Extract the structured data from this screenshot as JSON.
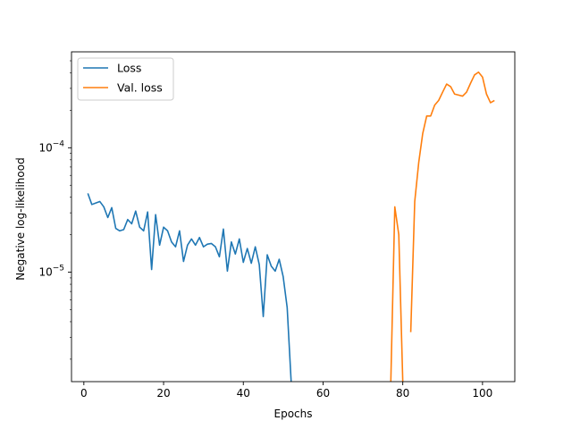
{
  "chart_data": {
    "type": "line",
    "title": "",
    "xlabel": "Epochs",
    "ylabel": "Negative log-likelihood",
    "xlim": [
      -3.1,
      108.1
    ],
    "ylim": [
      1.32e-06,
      0.00059
    ],
    "yscale": "log",
    "x_ticks": [
      0,
      20,
      40,
      60,
      80,
      100
    ],
    "x_tick_labels": [
      "0",
      "20",
      "40",
      "60",
      "80",
      "100"
    ],
    "y_ticks": [
      1e-05,
      0.0001
    ],
    "y_tick_labels": [
      {
        "base": "10",
        "exp": "−5"
      },
      {
        "base": "10",
        "exp": "−4"
      }
    ],
    "grid": false,
    "legend": "top-left",
    "series": [
      {
        "name": "Loss",
        "color": "#1f77b4",
        "x": [
          1,
          2,
          3,
          4,
          5,
          6,
          7,
          8,
          9,
          10,
          11,
          12,
          13,
          14,
          15,
          16,
          17,
          18,
          19,
          20,
          21,
          22,
          23,
          24,
          25,
          26,
          27,
          28,
          29,
          30,
          31,
          32,
          33,
          34,
          35,
          36,
          37,
          38,
          39,
          40,
          41,
          42,
          43,
          44,
          45,
          46,
          47,
          48,
          49,
          50,
          51,
          52
        ],
        "y": [
          4.3e-05,
          3.5e-05,
          3.6e-05,
          3.7e-05,
          3.35e-05,
          2.75e-05,
          3.3e-05,
          2.25e-05,
          2.15e-05,
          2.2e-05,
          2.65e-05,
          2.45e-05,
          3.1e-05,
          2.3e-05,
          2.15e-05,
          3.05e-05,
          1.05e-05,
          2.9e-05,
          1.65e-05,
          2.3e-05,
          2.15e-05,
          1.75e-05,
          1.6e-05,
          2.15e-05,
          1.22e-05,
          1.65e-05,
          1.85e-05,
          1.65e-05,
          1.9e-05,
          1.6e-05,
          1.68e-05,
          1.7e-05,
          1.6e-05,
          1.33e-05,
          2.22e-05,
          1.02e-05,
          1.75e-05,
          1.4e-05,
          1.85e-05,
          1.2e-05,
          1.55e-05,
          1.18e-05,
          1.6e-05,
          1.15e-05,
          4.4e-06,
          1.38e-05,
          1.12e-05,
          1.02e-05,
          1.27e-05,
          9.2e-06,
          5.2e-06,
          1.32e-06
        ]
      },
      {
        "name": "Val. loss",
        "color": "#ff7f0e",
        "segments": [
          {
            "x": [
              77,
              78,
              79,
              80
            ],
            "y": [
              1.32e-06,
              3.35e-05,
              2e-05,
              1.32e-06
            ]
          },
          {
            "x": [
              82,
              83,
              84,
              85,
              86,
              87,
              88,
              89,
              90,
              91,
              92,
              93,
              94,
              95,
              96,
              97,
              98,
              99,
              100,
              101,
              102,
              103
            ],
            "y": [
              3.3e-06,
              3.7e-05,
              7.6e-05,
              0.00013,
              0.00018,
              0.00018,
              0.00022,
              0.00024,
              0.00028,
              0.000325,
              0.00031,
              0.00027,
              0.000265,
              0.00026,
              0.00028,
              0.00033,
              0.000385,
              0.000405,
              0.00037,
              0.00027,
              0.00023,
              0.00024
            ]
          }
        ]
      }
    ]
  }
}
